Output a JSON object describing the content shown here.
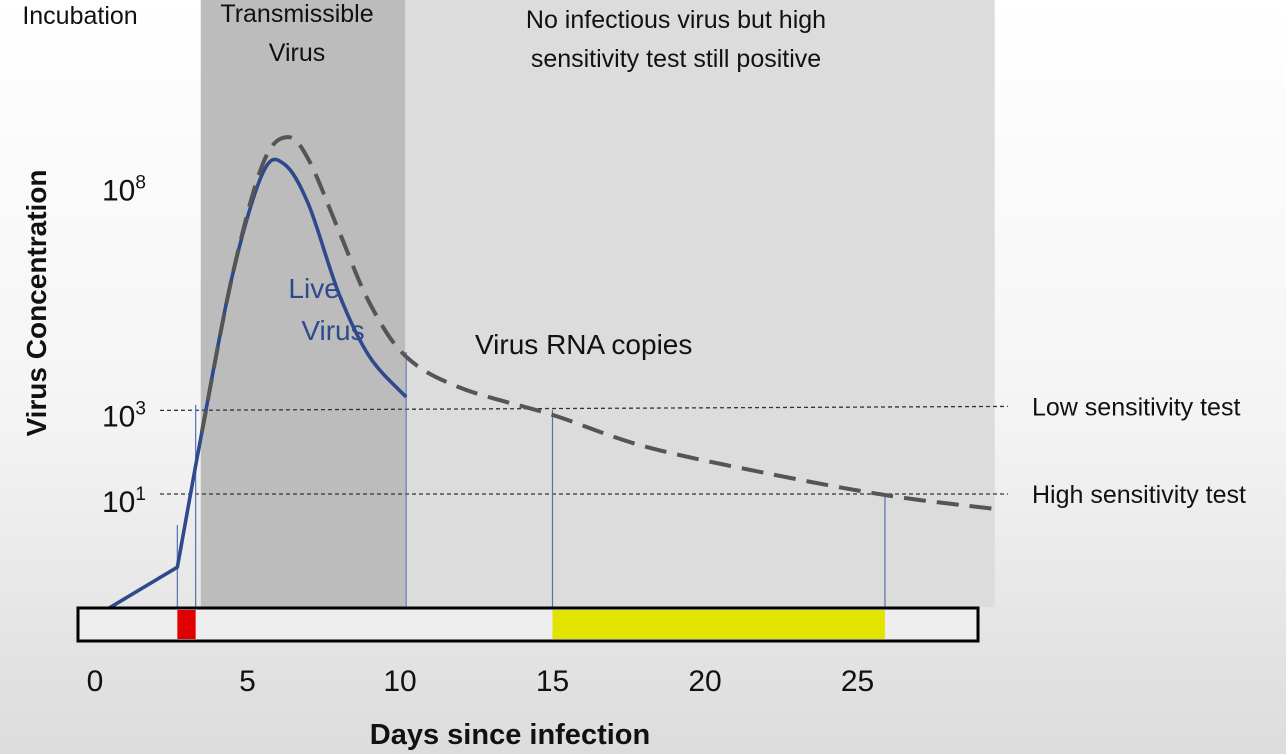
{
  "chart_data": {
    "type": "line",
    "title": "",
    "xlabel": "Days since infection",
    "ylabel": "Virus Concentration",
    "xlim": [
      0,
      29.5
    ],
    "x_ticks": [
      0,
      5,
      10,
      15,
      20,
      25
    ],
    "y_scale": "log",
    "y_ticks": [
      {
        "value": 8,
        "base": "10",
        "exp": "8"
      },
      {
        "value": 3,
        "base": "10",
        "exp": "3"
      },
      {
        "value": 1,
        "base": "10",
        "exp": "1"
      }
    ],
    "regions": [
      {
        "label": "Incubation",
        "x0": 0,
        "x1": 3.5
      },
      {
        "label": "Transmissible Virus",
        "x0": 3.5,
        "x1": 10.2
      },
      {
        "label": "No infectious virus but high sensitivity test still positive",
        "x0": 10.2,
        "x1": 29.5
      }
    ],
    "series": [
      {
        "name": "Live Virus",
        "color": "#2f4a8c",
        "style": "solid",
        "x": [
          0,
          2.7,
          3.5,
          4.5,
          5.5,
          6.2,
          7.0,
          8.0,
          9.0,
          10.2
        ],
        "y": [
          -1.6,
          -0.5,
          2.5,
          6.0,
          8.3,
          8.5,
          7.6,
          5.6,
          4.2,
          3.3
        ]
      },
      {
        "name": "Virus RNA copies",
        "color": "#555555",
        "style": "dashed",
        "x": [
          3.5,
          4.5,
          5.5,
          6.3,
          7.0,
          8.0,
          9.0,
          10.2,
          12.0,
          15.0,
          18.0,
          22.0,
          26.0,
          29.5
        ],
        "y": [
          2.5,
          6.0,
          8.5,
          9.1,
          8.6,
          7.0,
          5.4,
          4.2,
          3.5,
          2.9,
          2.2,
          1.6,
          1.1,
          0.8
        ]
      }
    ],
    "reference_lines": [
      {
        "label": "Low sensitivity test",
        "y": 3
      },
      {
        "label": "High sensitivity test",
        "y": 1
      }
    ],
    "markers": [
      {
        "x": 2.7
      },
      {
        "x": 3.3
      },
      {
        "x": 10.2
      },
      {
        "x": 15.0
      },
      {
        "x": 25.9
      }
    ],
    "timeline_bar": [
      {
        "x0": 2.7,
        "x1": 3.3,
        "color": "#e00000"
      },
      {
        "x0": 15.0,
        "x1": 25.9,
        "color": "#e3e300"
      }
    ]
  }
}
